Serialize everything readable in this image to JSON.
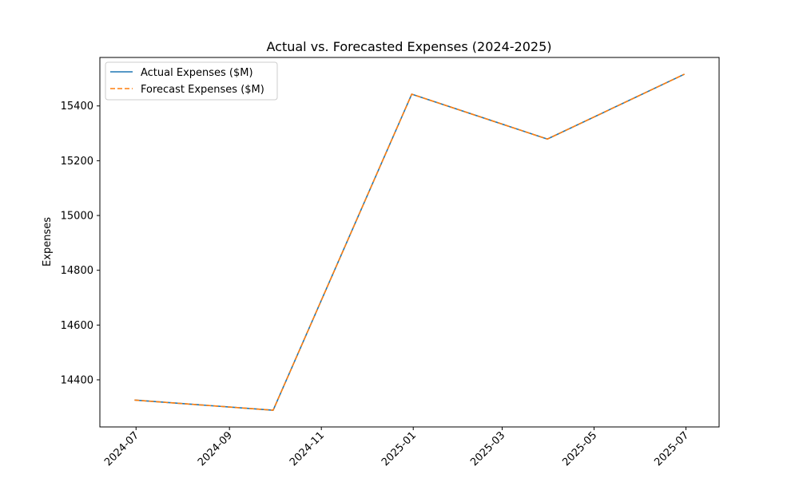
{
  "chart_data": {
    "type": "line",
    "title": "Actual vs. Forecasted Expenses (2024-2025)",
    "xlabel": "",
    "ylabel": "Expenses",
    "x": [
      "2024-06-30",
      "2024-09-30",
      "2024-12-31",
      "2025-03-31",
      "2025-06-30"
    ],
    "series": [
      {
        "name": "Actual Expenses ($M)",
        "color": "#1f77b4",
        "style": "solid",
        "values": [
          14326,
          14289,
          15443,
          15279,
          15516
        ]
      },
      {
        "name": "Forecast Expenses ($M)",
        "color": "#ff7f0e",
        "style": "dashed",
        "values": [
          14326,
          14289,
          15443,
          15279,
          15516
        ]
      }
    ],
    "xticks": [
      "2024-07",
      "2024-09",
      "2024-11",
      "2025-01",
      "2025-03",
      "2025-05",
      "2025-07"
    ],
    "xtick_dates": [
      "2024-07-01",
      "2024-09-01",
      "2024-11-01",
      "2025-01-01",
      "2025-03-01",
      "2025-05-01",
      "2025-07-01"
    ],
    "xlim": [
      "2024-06-07",
      "2025-07-23"
    ],
    "yticks": [
      14400,
      14600,
      14800,
      15000,
      15200,
      15400
    ],
    "ylim": [
      14228,
      15577
    ],
    "grid": false,
    "legend": "upper-left"
  }
}
